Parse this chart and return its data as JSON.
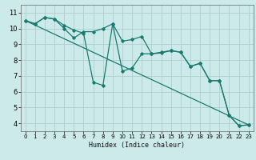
{
  "xlabel": "Humidex (Indice chaleur)",
  "background_color": "#cdeaea",
  "line_color": "#1a7a6e",
  "grid_color": "#b0cece",
  "xlim": [
    -0.5,
    23.5
  ],
  "ylim": [
    3.5,
    11.5
  ],
  "xticks": [
    0,
    1,
    2,
    3,
    4,
    5,
    6,
    7,
    8,
    9,
    10,
    11,
    12,
    13,
    14,
    15,
    16,
    17,
    18,
    19,
    20,
    21,
    22,
    23
  ],
  "yticks": [
    4,
    5,
    6,
    7,
    8,
    9,
    10,
    11
  ],
  "line1_x": [
    0,
    1,
    2,
    3,
    4,
    5,
    6,
    7,
    8,
    9,
    10,
    11,
    12,
    13,
    14,
    15,
    16,
    17,
    18,
    19,
    20,
    21,
    22,
    23
  ],
  "line1_y": [
    10.5,
    10.3,
    10.7,
    10.6,
    10.0,
    9.4,
    9.8,
    9.8,
    10.0,
    10.3,
    9.2,
    9.3,
    9.5,
    8.4,
    8.5,
    8.6,
    8.5,
    7.6,
    7.8,
    6.7,
    6.7,
    4.5,
    3.85,
    3.9
  ],
  "line2_x": [
    0,
    1,
    2,
    3,
    4,
    5,
    6,
    7,
    8,
    9,
    10,
    11,
    12,
    13,
    14,
    15,
    16,
    17,
    18,
    19,
    20,
    21,
    22,
    23
  ],
  "line2_y": [
    10.5,
    10.3,
    10.7,
    10.6,
    10.2,
    9.9,
    9.7,
    6.6,
    6.4,
    10.3,
    7.3,
    7.5,
    8.4,
    8.4,
    8.45,
    8.6,
    8.5,
    7.6,
    7.8,
    6.7,
    6.7,
    4.5,
    3.85,
    3.9
  ],
  "line3_x": [
    0,
    23
  ],
  "line3_y": [
    10.5,
    3.9
  ]
}
